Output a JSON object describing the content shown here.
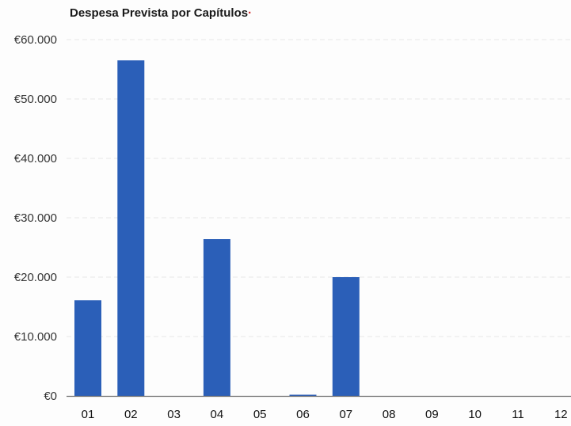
{
  "chart_data": {
    "type": "bar",
    "title": "Despesa Prevista por Capítulos",
    "xlabel": "",
    "ylabel": "",
    "categories": [
      "01",
      "02",
      "03",
      "04",
      "05",
      "06",
      "07",
      "08",
      "09",
      "10",
      "11",
      "12"
    ],
    "values": [
      16100,
      56500,
      0,
      26400,
      0,
      200,
      20000,
      0,
      0,
      0,
      0,
      0
    ],
    "ylim": [
      0,
      60000
    ],
    "y_ticks": [
      0,
      10000,
      20000,
      30000,
      40000,
      50000,
      60000
    ],
    "y_tick_labels": [
      "€0",
      "€10.000",
      "€20.000",
      "€30.000",
      "€40.000",
      "€50.000",
      "€60.000"
    ],
    "grid": true,
    "legend": "none",
    "bar_color": "#2b5fb8"
  }
}
